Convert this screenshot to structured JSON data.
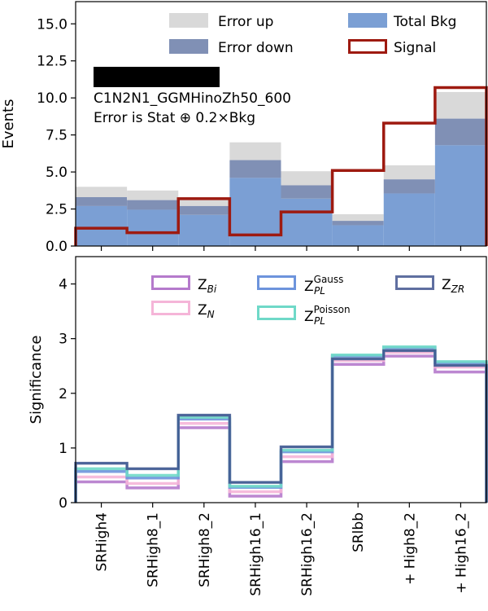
{
  "chart_data": [
    {
      "type": "bar",
      "categories": [
        "SRHigh4",
        "SRHigh8_1",
        "SRHigh8_2",
        "SRHigh16_1",
        "SRHigh16_2",
        "SRlbb",
        "+ High8_2",
        "+ High16_2"
      ],
      "ylabel": "Events",
      "ylim": [
        0,
        16.5
      ],
      "yticks": [
        "0.0",
        "2.5",
        "5.0",
        "7.5",
        "10.0",
        "12.5",
        "15.0"
      ],
      "legend_placement": "top-right",
      "annotation": {
        "label": "C1N2N1_GGMHinoZh50_600",
        "error_note": "Error is Stat ⊕ 0.2×Bkg"
      },
      "legend": {
        "error_up": "Error up",
        "error_down": "Error down",
        "total_bkg": "Total Bkg",
        "signal": "Signal"
      },
      "series": [
        {
          "key": "total_bkg",
          "values": [
            3.3,
            3.1,
            2.7,
            5.8,
            4.1,
            1.7,
            4.5,
            8.6
          ],
          "color": "#7b9fd4"
        },
        {
          "key": "error_up",
          "values": [
            4.0,
            3.75,
            3.3,
            7.0,
            5.05,
            2.15,
            5.45,
            10.4
          ],
          "color": "#d9d9d9"
        },
        {
          "key": "error_down",
          "values": [
            2.7,
            2.45,
            2.1,
            4.6,
            3.2,
            1.4,
            3.55,
            6.8
          ],
          "color": "#8090b5"
        },
        {
          "key": "signal",
          "values": [
            1.2,
            0.9,
            3.2,
            0.75,
            2.3,
            5.1,
            8.3,
            10.7
          ],
          "color": "#9e1a10"
        }
      ]
    },
    {
      "type": "line",
      "step": true,
      "categories": [
        "SRHigh4",
        "SRHigh8_1",
        "SRHigh8_2",
        "SRHigh16_1",
        "SRHigh16_2",
        "SRlbb",
        "+ High8_2",
        "+ High16_2"
      ],
      "ylabel": "Significance",
      "ylim": [
        0,
        4.5
      ],
      "yticks": [
        "0",
        "1",
        "2",
        "3",
        "4"
      ],
      "legend_placement": "top-right",
      "series": [
        {
          "key": "z_bi",
          "base": "Z",
          "sub": "Bi",
          "sup": "",
          "values": [
            0.38,
            0.27,
            1.37,
            0.12,
            0.75,
            2.53,
            2.68,
            2.39
          ],
          "color": "#b57acc"
        },
        {
          "key": "z_n",
          "base": "Z",
          "sub": "N",
          "sup": "",
          "values": [
            0.47,
            0.35,
            1.45,
            0.2,
            0.84,
            2.6,
            2.75,
            2.48
          ],
          "color": "#f5b5d8"
        },
        {
          "key": "z_pl_gauss",
          "base": "Z",
          "sub": "PL",
          "sup": "Gauss",
          "values": [
            0.57,
            0.45,
            1.53,
            0.28,
            0.93,
            2.68,
            2.83,
            2.56
          ],
          "color": "#6d94dc"
        },
        {
          "key": "z_pl_poisson",
          "base": "Z",
          "sub": "PL",
          "sup": "Poisson",
          "values": [
            0.62,
            0.5,
            1.56,
            0.3,
            0.96,
            2.7,
            2.85,
            2.58
          ],
          "color": "#6fd9c8"
        },
        {
          "key": "z_zr",
          "base": "Z",
          "sub": "ZR",
          "sup": "",
          "values": [
            0.72,
            0.62,
            1.6,
            0.37,
            1.02,
            2.63,
            2.78,
            2.51
          ],
          "color": "#5f6fa0"
        }
      ]
    }
  ]
}
